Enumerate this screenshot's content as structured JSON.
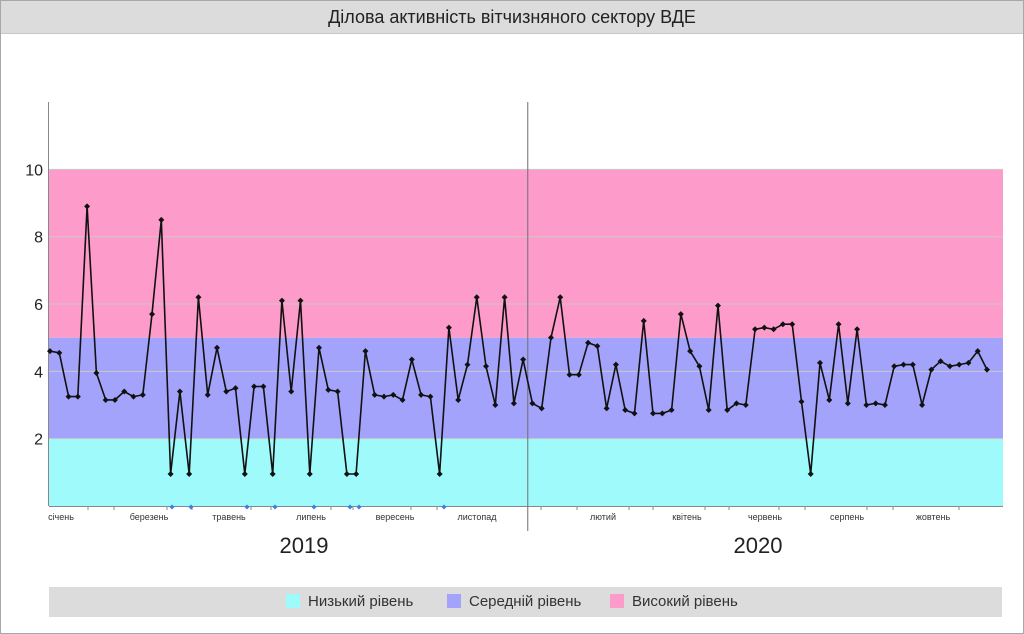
{
  "title": "Ділова активність вітчизняного сектору ВДЕ",
  "colors": {
    "low": "#9ffbfb",
    "medium": "#a3a3fb",
    "high": "#fd9ccb",
    "line": "#111111",
    "marker_blue": "#3b7fe0"
  },
  "legend": {
    "low": "Низький рівень",
    "medium": "Середній рівень",
    "high": "Високий рівень"
  },
  "chart_data": {
    "type": "line",
    "title": "Ділова активність вітчизняного сектору ВДЕ",
    "ylim": [
      0,
      12
    ],
    "y_ticks": [
      2,
      4,
      6,
      8,
      10
    ],
    "y_tick_labels": [
      "2",
      "4",
      "6",
      "8",
      "10"
    ],
    "bands": [
      {
        "name": "Низький рівень",
        "from": 0,
        "to": 2,
        "color": "#9ffbfb"
      },
      {
        "name": "Середній рівень",
        "from": 2,
        "to": 5,
        "color": "#a3a3fb"
      },
      {
        "name": "Високий рівень",
        "from": 5,
        "to": 10,
        "color": "#fd9ccb"
      }
    ],
    "years": [
      "2019",
      "2020"
    ],
    "months_2019": [
      "січень",
      "березень",
      "травень",
      "липень",
      "вересень",
      "листопад"
    ],
    "months_2020": [
      "лютий",
      "квітень",
      "червень",
      "серпень",
      "жовтень"
    ],
    "x_count": 102,
    "year_split_index": 52,
    "series": [
      {
        "values": [
          4.6,
          4.55,
          3.25,
          3.25,
          8.9,
          3.95,
          3.15,
          3.15,
          3.4,
          3.25,
          3.3,
          5.7,
          8.5,
          0.95,
          3.4,
          0.95,
          6.2,
          3.3,
          4.7,
          3.4,
          3.5,
          0.95,
          3.55,
          3.55,
          0.95,
          6.1,
          3.4,
          6.1,
          0.95,
          4.7,
          3.45,
          3.4,
          0.95,
          0.95,
          4.6,
          3.3,
          3.25,
          3.3,
          3.15,
          4.35,
          3.3,
          3.25,
          0.95,
          5.3,
          3.15,
          4.2,
          6.2,
          4.15,
          3.0,
          6.2,
          3.05,
          4.35,
          3.05,
          2.9,
          5.0,
          6.2,
          3.9,
          3.9,
          4.85,
          4.75,
          2.9,
          4.2,
          2.85,
          2.75,
          5.5,
          2.75,
          2.75,
          2.85,
          5.7,
          4.6,
          4.15,
          2.85,
          5.95,
          2.85,
          3.05,
          3.0,
          5.25,
          5.3,
          5.25,
          5.4,
          5.4,
          3.1,
          0.95,
          4.25,
          3.15,
          5.4,
          3.05,
          5.25,
          3.0,
          3.05,
          3.0,
          4.15,
          4.2,
          4.2,
          3.0,
          4.05,
          4.3,
          4.15,
          4.2,
          4.25,
          4.6,
          4.05
        ]
      }
    ],
    "blue_markers_2019": [
      "",
      "",
      "",
      "",
      "",
      "",
      "",
      ""
    ]
  }
}
